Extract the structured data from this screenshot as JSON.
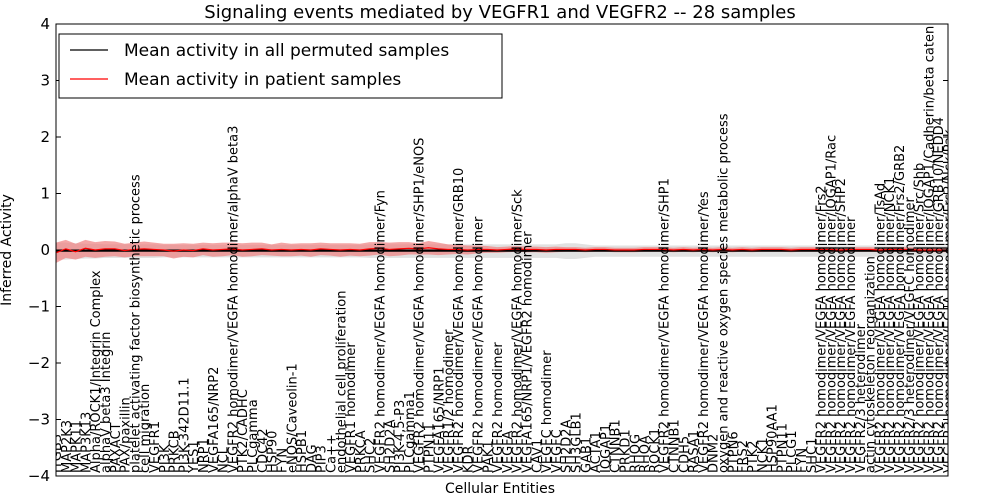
{
  "chart_data": {
    "type": "line",
    "title": "Signaling events mediated by VEGFR1 and VEGFR2 -- 28 samples",
    "xlabel": "Cellular Entities",
    "ylabel": "Inferred Activity",
    "ylim": [
      -4,
      4
    ],
    "yticks": [
      "−4",
      "−3",
      "−2",
      "−1",
      "0",
      "1",
      "2",
      "3",
      "4"
    ],
    "legend": {
      "placement": "top-left",
      "entries": [
        {
          "label": "Mean activity in all permuted samples",
          "color": "#000000"
        },
        {
          "label": "Mean activity in patient samples",
          "color": "#ff0000"
        }
      ]
    },
    "colors": {
      "permuted_line": "#000000",
      "permuted_band": "#c8c8c8",
      "patient_line": "#ff0000",
      "patient_band": "#f08080",
      "zero_line": "#000000"
    },
    "categories": [
      "ITGB3",
      "MAP2K3",
      "MAPK11",
      "MAP3K13",
      "Alpha/ROCK1/Integrin Complex",
      "alphaV beta3 Integrin",
      "PAXACT",
      "PAX/paxillin",
      "platelet activating factor biosynthetic process",
      "cell migration",
      "VEGFR1",
      "PI3K",
      "PRKCB",
      "PI3K-342D11.1",
      "YES1",
      "NRP1",
      "VEGFA165/NRP2",
      "NCL",
      "VEGFR2 homodimer/VEGFA homodimer/alphaV beta3",
      "PTK2/CADHC",
      "PLCgamma",
      "CDC42",
      "HSP90",
      "FYN",
      "eNOS/Caveolin-1",
      "HSPB1",
      "DAG",
      "PIP3",
      "Ca++",
      "endothelial cell proliferation",
      "VEGFR1 homodimer",
      "PRKCA",
      "SHC2",
      "VEGFR2 homodimer/VEGFA homodimer/Fyn",
      "SH2D2A",
      "PI3K-4,5-P3",
      "PLCgamma1",
      "VEGFR2 homodimer/VEGFA homodimer/SHP1/eNOS",
      "PTPN11",
      "VEGFA165/NRP1",
      "VEGFR1/2 homodimer",
      "VEGFR2 homodimer/VEGFA homodimer/GRB10",
      "KDR",
      "VEGFR2 homodimer/VEGFA homodimer",
      "PAK1",
      "VEGFR2 homodimer",
      "VEGFA",
      "VEGFR2 homodimer/VEGFA homodimer/Sck",
      "VEGFA165/NRP1/VEGFR2 homodimer",
      "CAV1",
      "VEGFC homodimer",
      "VEGFC",
      "SH2D2A",
      "SH3GLB1",
      "GAB1",
      "ACTA1",
      "IQGAP1",
      "CTNNB1",
      "PRKD1",
      "RHOG",
      "RHOA",
      "ROCK1",
      "VEGFR2 homodimer/VEGFA homodimer/SHP1",
      "CTNNB1",
      "CDH5",
      "RASA1",
      "VEGFR2 homodimer/VEGFA homodimer/Yes",
      "DNM2",
      "oxygen and reactive oxygen species metabolic process",
      "PTPN6",
      "FRS2",
      "PTK2",
      "NCK1",
      "HSP90AA1",
      "PTPN11",
      "PLCG1",
      "FYN",
      "SHC1",
      "VEGFR2 homodimer/VEGFA homodimer/Frs2",
      "VEGFR2 homodimer/VEGFA homodimer/IQGAP1/Rac",
      "VEGFR2 homodimer/VEGFA homodimer/SHP2",
      "VEGFR2 homodimer/VEGFA homodimer",
      "VEGFR2/3 heterodimer",
      "actin cytoskeleton reorganization",
      "VEGFR2 homodimer/VEGFA homodimer/TsAd",
      "VEGFR2 homodimer/VEGFA homodimer/NCK1",
      "VEGFR2 homodimer/VEGFA homodimer/Frs2/GRB2",
      "VEGFR2/3 heterodimer/VEGFC homodimer",
      "VEGFR2 homodimer/VEGFA homodimer/Src/Shb",
      "VEGFR2 homodimer/VEGFA homodimer/IQGAP1/Cadherin/beta catenin",
      "VEGFR2 homodimer/VEGFA homodimer/GRB10/NEDD4",
      "VEGFR2 homodimer/VEGFA homodimer/Frs2/Nck/Pak"
    ],
    "series": [
      {
        "name": "Mean activity in all permuted samples",
        "values": [
          -0.02,
          -0.02,
          -0.02,
          -0.02,
          -0.02,
          -0.02,
          -0.02,
          -0.02,
          -0.02,
          -0.02,
          -0.02,
          -0.02,
          -0.02,
          -0.02,
          -0.02,
          -0.02,
          -0.02,
          -0.02,
          -0.02,
          -0.02,
          -0.02,
          -0.02,
          -0.02,
          -0.02,
          -0.02,
          -0.02,
          -0.02,
          -0.02,
          -0.02,
          -0.02,
          -0.02,
          -0.02,
          -0.02,
          -0.02,
          -0.02,
          -0.02,
          -0.02,
          -0.02,
          -0.02,
          -0.02,
          -0.02,
          -0.02,
          -0.02,
          -0.02,
          -0.02,
          -0.02,
          -0.02,
          -0.02,
          -0.02,
          -0.02,
          -0.02,
          -0.02,
          -0.02,
          -0.02,
          -0.02,
          -0.02,
          -0.02,
          -0.02,
          -0.02,
          -0.02,
          -0.02,
          -0.02,
          -0.02,
          -0.02,
          -0.02,
          -0.02,
          -0.02,
          -0.02,
          -0.02,
          -0.02,
          -0.02,
          -0.02,
          -0.02,
          -0.02,
          -0.02,
          -0.02,
          -0.02,
          -0.02,
          -0.02,
          -0.02,
          -0.02,
          -0.02,
          -0.02,
          -0.02,
          -0.02,
          -0.02,
          -0.02,
          -0.02,
          -0.02,
          -0.02,
          -0.02,
          -0.02
        ]
      },
      {
        "name": "Mean activity in patient samples",
        "values": [
          -0.05,
          0.02,
          -0.03,
          0.03,
          0.0,
          0.02,
          0.02,
          -0.01,
          0.01,
          0.02,
          0.01,
          0.0,
          -0.02,
          0.0,
          -0.01,
          0.02,
          0.0,
          0.01,
          0.02,
          0.0,
          0.01,
          0.02,
          0.0,
          0.01,
          0.0,
          0.01,
          0.0,
          0.02,
          0.01,
          0.0,
          0.01,
          0.0,
          0.02,
          0.03,
          0.01,
          0.02,
          0.03,
          0.02,
          0.04,
          0.02,
          0.01,
          0.01,
          0.0,
          0.01,
          0.01,
          0.0,
          0.01,
          0.02,
          0.01,
          0.01,
          0.0,
          0.01,
          0.01,
          0.01,
          0.0,
          0.01,
          0.01,
          0.0,
          0.0,
          0.0,
          0.01,
          0.01,
          0.01,
          0.0,
          0.01,
          0.0,
          0.01,
          0.0,
          0.01,
          0.0,
          0.01,
          0.0,
          0.01,
          0.01,
          0.01,
          0.0,
          0.01,
          0.01,
          0.01,
          0.01,
          0.0,
          0.01,
          0.01,
          0.01,
          0.0,
          0.01,
          0.01,
          0.01,
          0.0,
          0.0,
          0.0,
          0.0
        ]
      }
    ],
    "bands": {
      "permuted_halfwidth": [
        0.15,
        0.15,
        0.14,
        0.13,
        0.13,
        0.12,
        0.12,
        0.12,
        0.12,
        0.12,
        0.12,
        0.11,
        0.11,
        0.11,
        0.11,
        0.11,
        0.11,
        0.11,
        0.11,
        0.11,
        0.11,
        0.11,
        0.11,
        0.11,
        0.11,
        0.11,
        0.11,
        0.11,
        0.11,
        0.11,
        0.11,
        0.11,
        0.12,
        0.12,
        0.12,
        0.12,
        0.12,
        0.12,
        0.12,
        0.12,
        0.12,
        0.12,
        0.12,
        0.12,
        0.12,
        0.12,
        0.12,
        0.12,
        0.12,
        0.12,
        0.12,
        0.12,
        0.14,
        0.14,
        0.12,
        0.1,
        0.1,
        0.1,
        0.1,
        0.1,
        0.1,
        0.1,
        0.1,
        0.1,
        0.1,
        0.1,
        0.1,
        0.1,
        0.1,
        0.1,
        0.1,
        0.1,
        0.1,
        0.1,
        0.1,
        0.1,
        0.1,
        0.1,
        0.1,
        0.1,
        0.1,
        0.1,
        0.1,
        0.1,
        0.1,
        0.1,
        0.1,
        0.1,
        0.1,
        0.1,
        0.1,
        0.1
      ],
      "patient_halfwidth": [
        0.18,
        0.16,
        0.14,
        0.15,
        0.14,
        0.14,
        0.13,
        0.12,
        0.12,
        0.13,
        0.12,
        0.11,
        0.13,
        0.12,
        0.12,
        0.11,
        0.12,
        0.12,
        0.11,
        0.12,
        0.12,
        0.11,
        0.1,
        0.12,
        0.11,
        0.11,
        0.12,
        0.11,
        0.11,
        0.12,
        0.11,
        0.11,
        0.12,
        0.11,
        0.12,
        0.12,
        0.11,
        0.1,
        0.12,
        0.11,
        0.09,
        0.08,
        0.08,
        0.07,
        0.06,
        0.05,
        0.05,
        0.05,
        0.05,
        0.05,
        0.05,
        0.05,
        0.04,
        0.04,
        0.04,
        0.04,
        0.04,
        0.04,
        0.04,
        0.04,
        0.04,
        0.04,
        0.04,
        0.04,
        0.04,
        0.04,
        0.04,
        0.04,
        0.04,
        0.04,
        0.04,
        0.04,
        0.04,
        0.04,
        0.04,
        0.04,
        0.04,
        0.04,
        0.04,
        0.04,
        0.04,
        0.04,
        0.04,
        0.04,
        0.04,
        0.04,
        0.04,
        0.04,
        0.04,
        0.04,
        0.04,
        0.04
      ]
    }
  }
}
